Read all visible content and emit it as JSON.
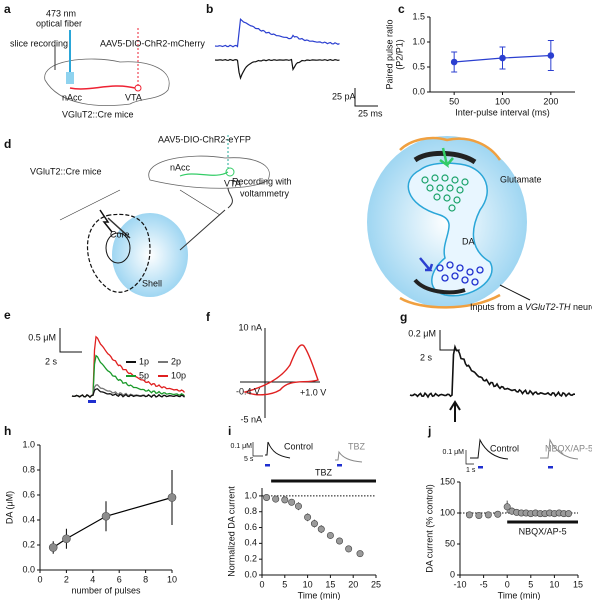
{
  "panel_labels": [
    "a",
    "b",
    "c",
    "d",
    "e",
    "f",
    "g",
    "h",
    "i",
    "j"
  ],
  "panel_a": {
    "fiber": "473 nm",
    "fiber2": "optical fiber",
    "recording": "slice recording",
    "virus": "AAV5-DIO-ChR2-mCherry",
    "nacc": "nAcc",
    "vta": "VTA",
    "mice": "VGluT2::Cre mice"
  },
  "panel_b": {
    "scale_y": "25 pA",
    "scale_x": "25 ms"
  },
  "panel_d": {
    "virus": "AAV5-DIO-ChR2-eYFP",
    "mice": "VGluT2::Cre mice",
    "nacc": "nAcc",
    "vta": "VTA",
    "recording": "Recording with",
    "recording2": "voltammetry",
    "core": "Core",
    "shell": "Shell",
    "glutamate": "Glutamate",
    "da": "DA",
    "inputs": [
      "Inputs from a ",
      "VGluT2-TH",
      " neuron"
    ]
  },
  "panel_e": {
    "scale_y": "0.5 μM",
    "scale_x": "2 s",
    "legend": [
      "1p",
      "2p",
      "5p",
      "10p"
    ]
  },
  "panel_f": {
    "top": "10 nA",
    "bottom": "-5 nA",
    "left": "-0.4 V",
    "right": "+1.0 V"
  },
  "panel_g": {
    "scale_y": "0.2 μM",
    "scale_x": "2 s"
  },
  "chart_data": [
    {
      "type": "line",
      "categories": [
        "50",
        "100",
        "200"
      ],
      "values": [
        0.6,
        0.68,
        0.73
      ],
      "errors": [
        0.2,
        0.22,
        0.3
      ],
      "color": "#2b3fd0",
      "marker_color": "#2b3fd0",
      "ylim": [
        0,
        1.5
      ],
      "yticks": [
        {
          "value": 0,
          "label": "0.0"
        },
        0.5,
        {
          "value": 1,
          "label": "1.0"
        },
        1.5
      ],
      "xlabel": "Inter-pulse interval (ms)",
      "ylabel": [
        "Paired pulse ratio",
        "(P2/P1)"
      ]
    },
    {
      "type": "line",
      "x": [
        1,
        2,
        5,
        10
      ],
      "values": [
        0.18,
        0.25,
        0.43,
        0.58
      ],
      "errors": [
        0.05,
        0.08,
        0.12,
        0.22
      ],
      "color": "#000000",
      "marker_color": "#8c8c8c",
      "xlim": [
        0,
        10
      ],
      "xticks": [
        0,
        2,
        4,
        6,
        8,
        10
      ],
      "ylim": [
        0,
        1
      ],
      "yticks": [
        {
          "value": 0,
          "label": "0.0"
        },
        0.2,
        0.4,
        0.6,
        0.8,
        {
          "value": 1,
          "label": "1.0"
        }
      ],
      "xlabel": "number of pulses",
      "ylabel": [
        "DA (μM)"
      ]
    },
    {
      "type": "scatter",
      "x": [
        1,
        3,
        5,
        6.5,
        8,
        10,
        11.5,
        13,
        15,
        17,
        19,
        21.5
      ],
      "values": [
        0.98,
        0.96,
        0.95,
        0.92,
        0.87,
        0.73,
        0.65,
        0.58,
        0.5,
        0.43,
        0.33,
        0.27
      ],
      "errors": [
        0.03,
        0.03,
        0.03,
        0.04,
        0.05,
        0.05,
        0.05,
        0.05,
        0.04,
        0.04,
        0.04,
        0.03
      ],
      "marker_color": "#9a9a9a",
      "xlim": [
        0,
        25
      ],
      "xticks": [
        0,
        5,
        10,
        15,
        20,
        25
      ],
      "ylim": [
        0,
        1.1
      ],
      "yticks": [
        {
          "value": 0,
          "label": "0.0"
        },
        0.2,
        0.4,
        0.6,
        0.8,
        {
          "value": 1,
          "label": "1.0"
        }
      ],
      "ref_line": 1,
      "bar": {
        "label": "TBZ",
        "from": 2,
        "to": 25
      },
      "insets": {
        "scale_y": "0.1 μM",
        "scale_x": "5 s",
        "labels": [
          "Control",
          "TBZ"
        ]
      },
      "xlabel": "Time (min)",
      "ylabel": [
        "Normalized DA current"
      ]
    },
    {
      "type": "scatter",
      "x": [
        -8,
        -6,
        -4,
        -2,
        0,
        1,
        2,
        3,
        4,
        5,
        6,
        7,
        8,
        9,
        10,
        11,
        12,
        13
      ],
      "values": [
        97,
        96,
        97,
        98,
        110,
        103,
        101,
        100,
        100,
        99,
        100,
        99,
        99,
        100,
        99,
        100,
        99,
        99
      ],
      "errors": [
        4,
        4,
        4,
        4,
        10,
        6,
        4,
        3,
        3,
        3,
        3,
        3,
        3,
        3,
        3,
        3,
        3,
        3
      ],
      "marker_color": "#9a9a9a",
      "xlim": [
        -10,
        15
      ],
      "xticks": [
        -10,
        -5,
        0,
        5,
        10,
        15
      ],
      "ylim": [
        0,
        150
      ],
      "yticks": [
        0,
        50,
        100,
        150
      ],
      "ref_line": 100,
      "bar": {
        "label": "NBQX/AP-5",
        "from": 0,
        "to": 15
      },
      "insets": {
        "scale_y": "0.1 μM",
        "scale_x": "1 s",
        "labels": [
          "Control",
          "NBQX/AP-5"
        ]
      },
      "xlabel": "Time (min)",
      "ylabel": [
        "DA current (% control)"
      ]
    }
  ]
}
